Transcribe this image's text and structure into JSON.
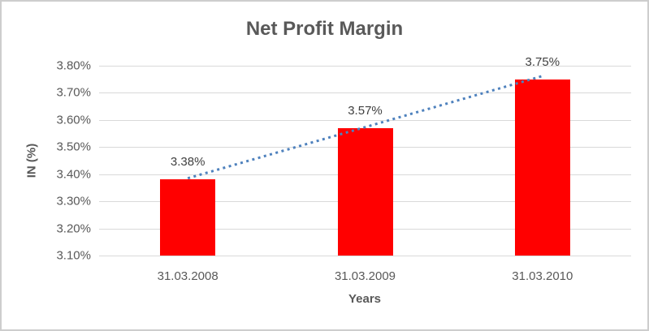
{
  "window": {
    "background": "#FFFFFF",
    "border_color": "#CDCDCD"
  },
  "chart_data": {
    "type": "bar",
    "title": "Net Profit Margin",
    "xlabel": "Years",
    "ylabel": "IN (%)",
    "categories": [
      "31.03.2008",
      "31.03.2009",
      "31.03.2010"
    ],
    "series": [
      {
        "name": "Net Profit Margin",
        "values": [
          3.38,
          3.57,
          3.75
        ],
        "data_labels": [
          "3.38%",
          "3.57%",
          "3.75%"
        ],
        "color": "#FF0000"
      }
    ],
    "ylim": [
      3.1,
      3.8
    ],
    "yticks": [
      {
        "value": 3.1,
        "label": "3.10%"
      },
      {
        "value": 3.2,
        "label": "3.20%"
      },
      {
        "value": 3.3,
        "label": "3.30%"
      },
      {
        "value": 3.4,
        "label": "3.40%"
      },
      {
        "value": 3.5,
        "label": "3.50%"
      },
      {
        "value": 3.6,
        "label": "3.60%"
      },
      {
        "value": 3.7,
        "label": "3.70%"
      },
      {
        "value": 3.8,
        "label": "3.80%"
      }
    ],
    "grid": true,
    "legend": "none",
    "trendline": {
      "style": "dotted",
      "color": "#4E81BD",
      "start": {
        "category_index": 0,
        "value": 3.385
      },
      "end": {
        "category_index": 2,
        "value": 3.762
      }
    },
    "colors": {
      "title_text": "#595959",
      "axis_text": "#595959",
      "data_label_text": "#404040",
      "gridline": "#D9D9D9"
    }
  }
}
